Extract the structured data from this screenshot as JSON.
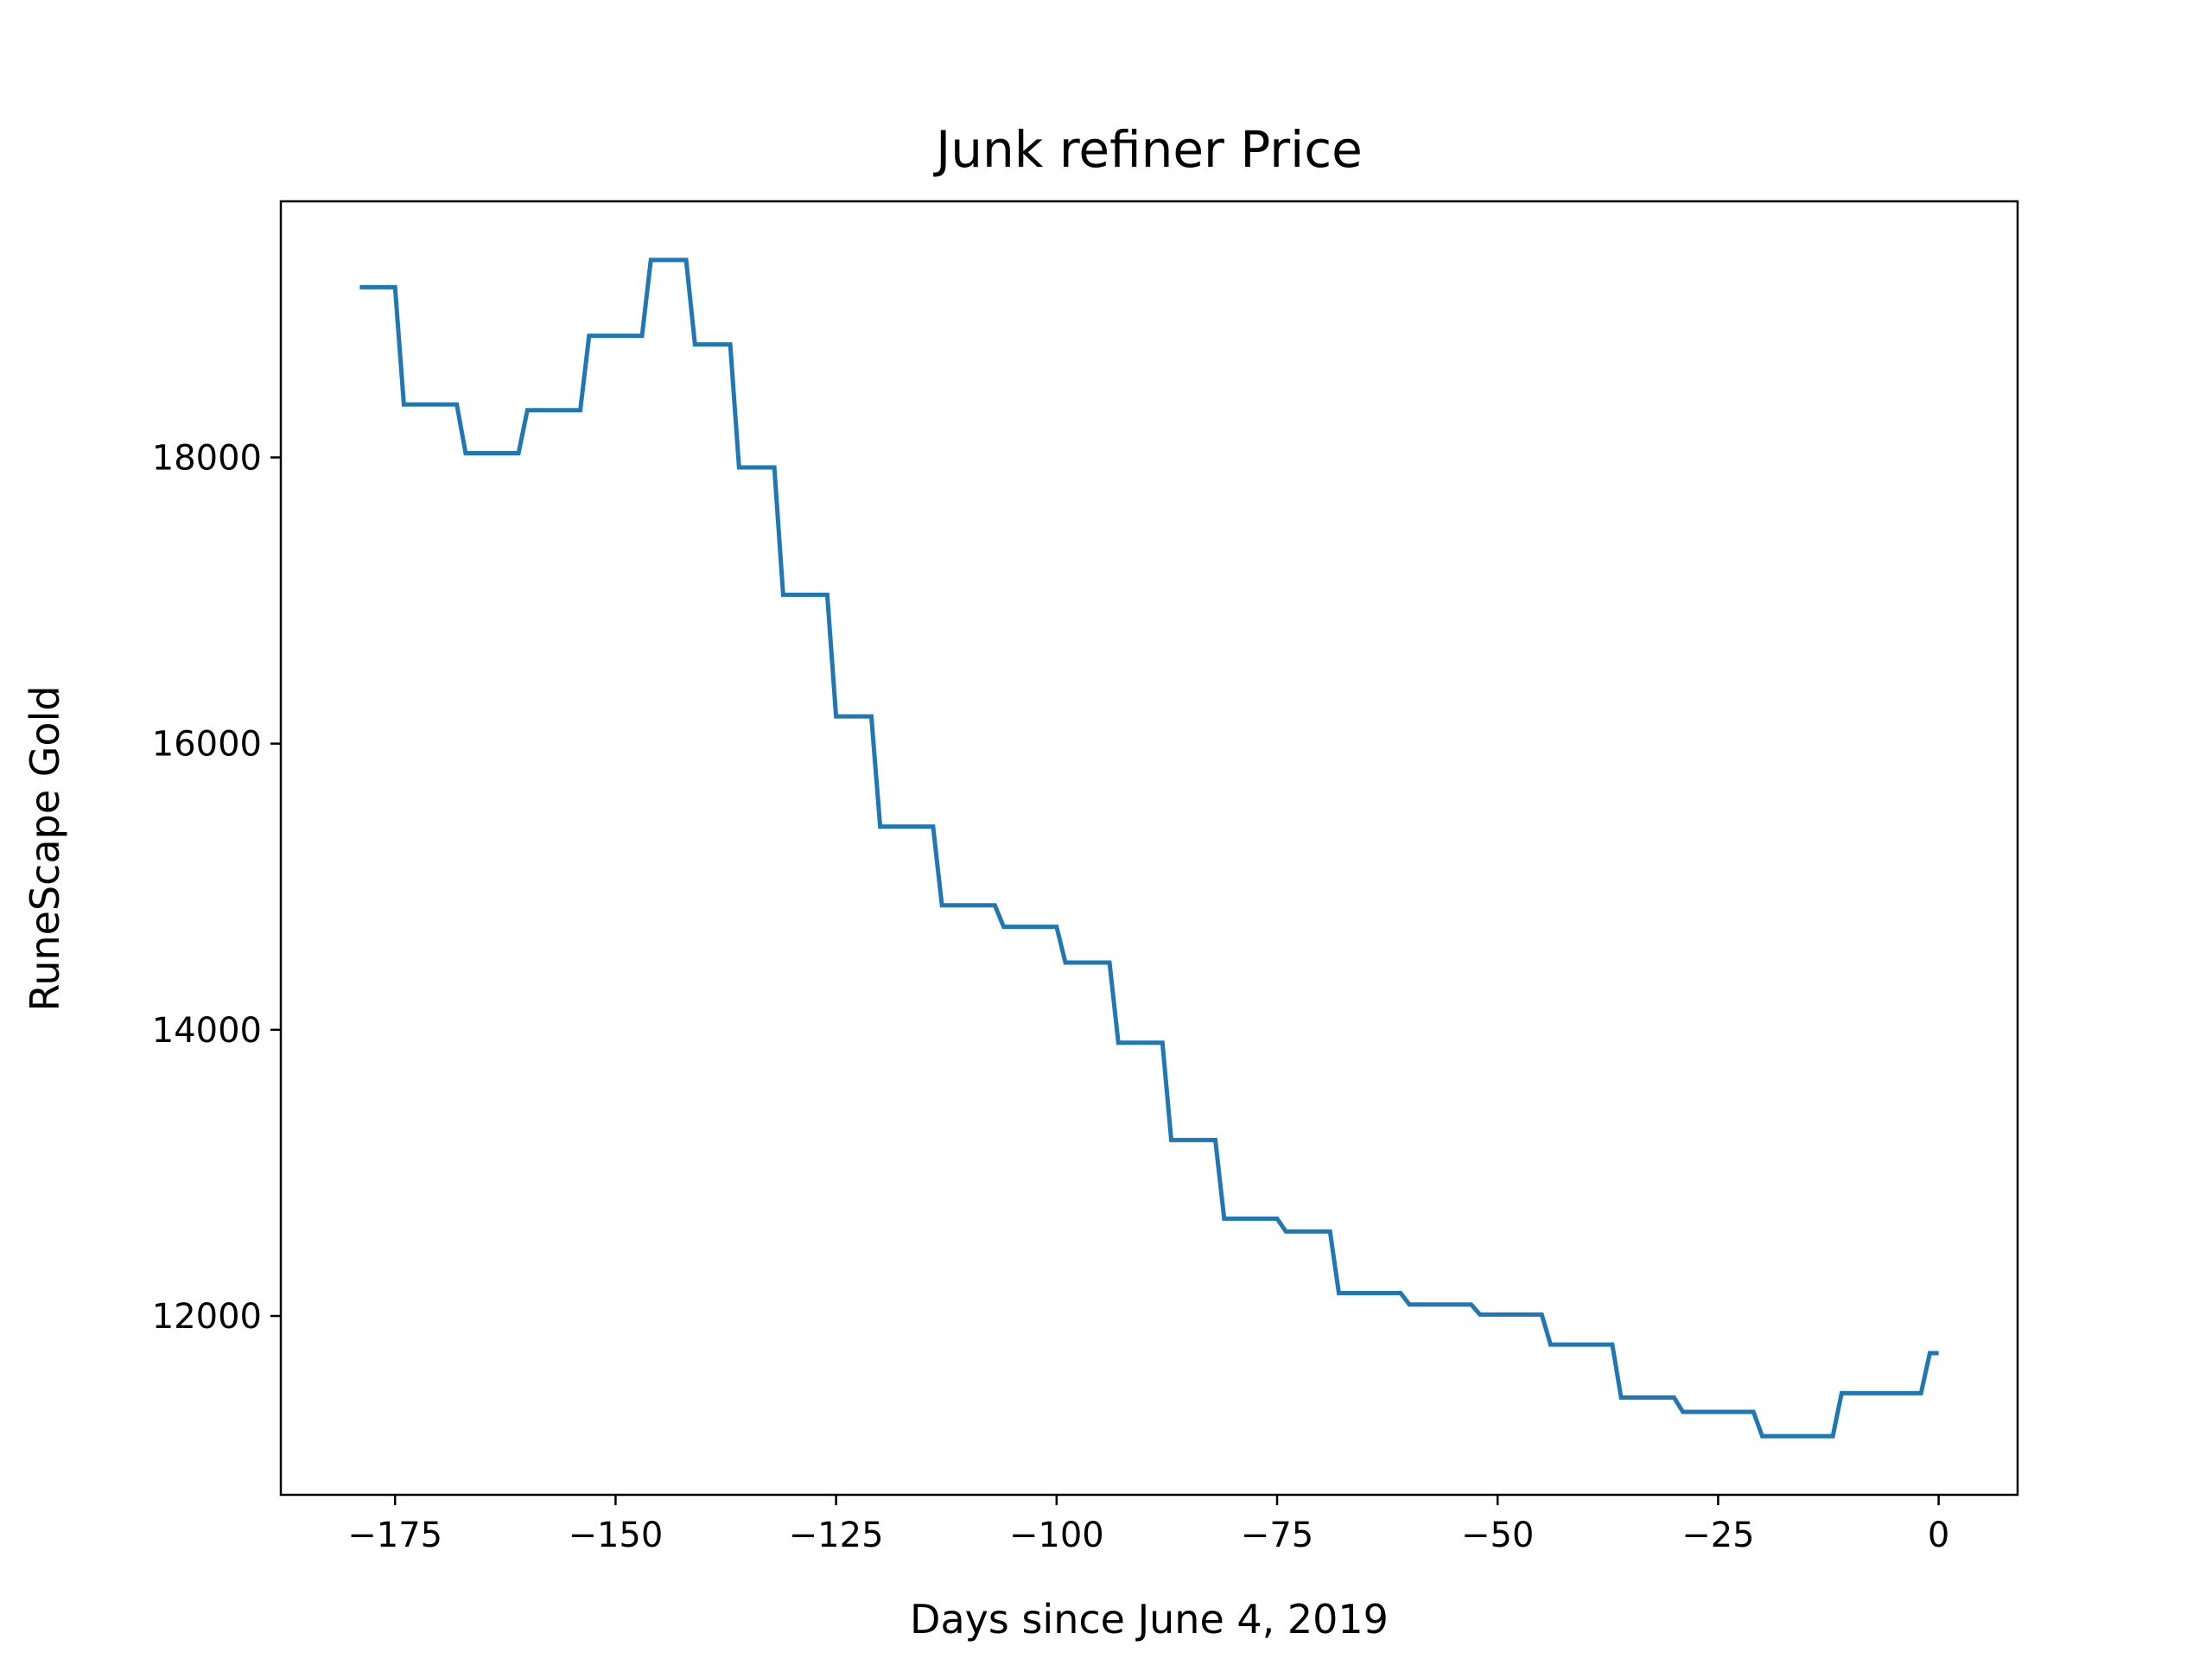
{
  "chart_data": {
    "type": "line",
    "title": "Junk refiner Price",
    "xlabel": "Days since June 4, 2019",
    "ylabel": "RuneScape Gold",
    "x": [
      -179,
      -175,
      -174,
      -168,
      -167,
      -161,
      -160,
      -154,
      -153,
      -147,
      -146,
      -142,
      -141,
      -137,
      -136,
      -132,
      -131,
      -126,
      -125,
      -121,
      -120,
      -114,
      -113,
      -107,
      -106,
      -100,
      -99,
      -94,
      -93,
      -88,
      -87,
      -82,
      -81,
      -75,
      -74,
      -69,
      -68,
      -61,
      -60,
      -53,
      -52,
      -45,
      -44,
      -37,
      -36,
      -30,
      -29,
      -21,
      -20,
      -12,
      -11,
      -2,
      -1,
      0
    ],
    "series": [
      {
        "name": "Price",
        "color": "#1f77b4",
        "values": [
          19190,
          19190,
          18370,
          18370,
          18030,
          18030,
          18330,
          18330,
          18850,
          18850,
          19380,
          19380,
          18790,
          18790,
          17930,
          17930,
          17040,
          17040,
          16190,
          16190,
          15420,
          15420,
          14870,
          14870,
          14720,
          14720,
          14470,
          14470,
          13910,
          13910,
          13230,
          13230,
          12680,
          12680,
          12590,
          12590,
          12160,
          12160,
          12080,
          12080,
          12010,
          12010,
          11800,
          11800,
          11430,
          11430,
          11330,
          11330,
          11160,
          11160,
          11460,
          11460,
          11740,
          11740
        ]
      }
    ],
    "xlim": [
      -187.95,
      8.95
    ],
    "ylim": [
      10750,
      19790
    ],
    "xticks": [
      {
        "value": -175,
        "label": "−175"
      },
      {
        "value": -150,
        "label": "−150"
      },
      {
        "value": -125,
        "label": "−125"
      },
      {
        "value": -100,
        "label": "−100"
      },
      {
        "value": -75,
        "label": "−75"
      },
      {
        "value": -50,
        "label": "−50"
      },
      {
        "value": -25,
        "label": "−25"
      },
      0
    ],
    "yticks": [
      12000,
      14000,
      16000,
      18000
    ]
  }
}
